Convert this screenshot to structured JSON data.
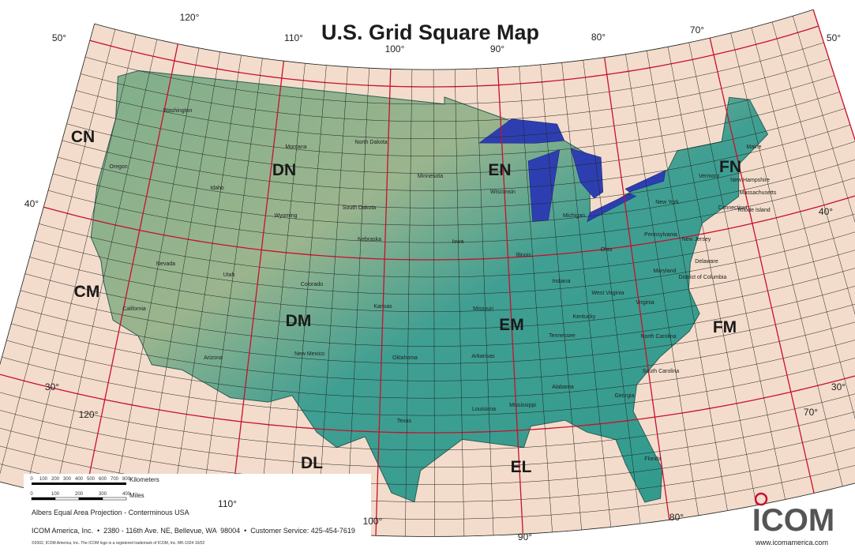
{
  "title": "U.S. Grid Square Map",
  "fields": [
    "CN",
    "DN",
    "EN",
    "FN",
    "CM",
    "DM",
    "EM",
    "FM",
    "DL",
    "EL"
  ],
  "longitude_labels_top": [
    "120°",
    "110°",
    "100°",
    "90°",
    "80°",
    "70°"
  ],
  "longitude_labels_bottom": [
    "120°",
    "110°",
    "100°",
    "90°",
    "80°",
    "70°"
  ],
  "latitude_labels_left": [
    "50°",
    "40°",
    "30°"
  ],
  "latitude_labels_right": [
    "50°",
    "40°",
    "30°"
  ],
  "states": [
    "Washington",
    "Oregon",
    "California",
    "Nevada",
    "Idaho",
    "Montana",
    "Wyoming",
    "Utah",
    "Arizona",
    "Colorado",
    "New Mexico",
    "North Dakota",
    "South Dakota",
    "Nebraska",
    "Kansas",
    "Oklahoma",
    "Texas",
    "Minnesota",
    "Iowa",
    "Missouri",
    "Arkansas",
    "Louisiana",
    "Wisconsin",
    "Illinois",
    "Michigan",
    "Indiana",
    "Ohio",
    "Kentucky",
    "Tennessee",
    "Mississippi",
    "Alabama",
    "Georgia",
    "Florida",
    "South Carolina",
    "North Carolina",
    "Virginia",
    "West Virginia",
    "Pennsylvania",
    "New York",
    "Maine",
    "Vermont",
    "New Hampshire",
    "Massachusetts",
    "Connecticut",
    "Rhode Island",
    "New Jersey",
    "Delaware",
    "Maryland",
    "District of Columbia"
  ],
  "scale": {
    "km_ticks": [
      "0",
      "100",
      "200",
      "300",
      "400",
      "500",
      "600",
      "700",
      "800"
    ],
    "km_unit": "Kilometers",
    "mi_ticks": [
      "0",
      "100",
      "200",
      "300",
      "400"
    ],
    "mi_unit": "Miles"
  },
  "projection": "Albers Equal Area Projection - Conterminous USA",
  "footer": "ICOM America, Inc.  •  2380 - 116th Ave. NE, Bellevue, WA  98004  •  Customer Service: 425-454-7619",
  "fine_print": "©2002, ICOM America, Inc. The ICOM logo is a registered trademark of ICOM, Inc.  MK-1024  10/02",
  "logo": "ICOM",
  "website": "www.icomamerica.com"
}
